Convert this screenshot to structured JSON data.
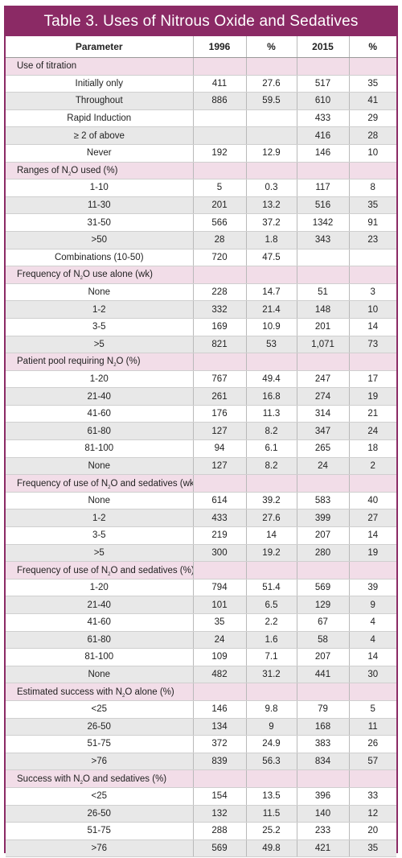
{
  "title": "Table 3. Uses of Nitrous Oxide and Sedatives",
  "headers": [
    "Parameter",
    "1996",
    "%",
    "2015",
    "%"
  ],
  "groups": [
    {
      "label": [
        "Use of titration"
      ],
      "rows": [
        [
          "Initially only",
          "411",
          "27.6",
          "517",
          "35"
        ],
        [
          "Throughout",
          "886",
          "59.5",
          "610",
          "41"
        ],
        [
          "Rapid Induction",
          "",
          "",
          "433",
          "29"
        ],
        [
          "≥ 2 of above",
          "",
          "",
          "416",
          "28"
        ],
        [
          "Never",
          "192",
          "12.9",
          "146",
          "10"
        ]
      ]
    },
    {
      "label": [
        "Ranges of N",
        "2",
        "O used (%)"
      ],
      "rows": [
        [
          "1-10",
          "5",
          "0.3",
          "117",
          "8"
        ],
        [
          "11-30",
          "201",
          "13.2",
          "516",
          "35"
        ],
        [
          "31-50",
          "566",
          "37.2",
          "1342",
          "91"
        ],
        [
          ">50",
          "28",
          "1.8",
          "343",
          "23"
        ],
        [
          "Combinations (10-50)",
          "720",
          "47.5",
          "",
          ""
        ]
      ]
    },
    {
      "label": [
        "Frequency of N",
        "2",
        "O use alone (wk)"
      ],
      "rows": [
        [
          "None",
          "228",
          "14.7",
          "51",
          "3"
        ],
        [
          "1-2",
          "332",
          "21.4",
          "148",
          "10"
        ],
        [
          "3-5",
          "169",
          "10.9",
          "201",
          "14"
        ],
        [
          ">5",
          "821",
          "53",
          "1,071",
          "73"
        ]
      ]
    },
    {
      "label": [
        "Patient pool requiring N",
        "2",
        "O (%)"
      ],
      "rows": [
        [
          "1-20",
          "767",
          "49.4",
          "247",
          "17"
        ],
        [
          "21-40",
          "261",
          "16.8",
          "274",
          "19"
        ],
        [
          "41-60",
          "176",
          "11.3",
          "314",
          "21"
        ],
        [
          "61-80",
          "127",
          "8.2",
          "347",
          "24"
        ],
        [
          "81-100",
          "94",
          "6.1",
          "265",
          "18"
        ],
        [
          "None",
          "127",
          "8.2",
          "24",
          "2"
        ]
      ]
    },
    {
      "label": [
        "Frequency of use of N",
        "2",
        "O and sedatives (wk)"
      ],
      "rows": [
        [
          "None",
          "614",
          "39.2",
          "583",
          "40"
        ],
        [
          "1-2",
          "433",
          "27.6",
          "399",
          "27"
        ],
        [
          "3-5",
          "219",
          "14",
          "207",
          "14"
        ],
        [
          ">5",
          "300",
          "19.2",
          "280",
          "19"
        ]
      ]
    },
    {
      "label": [
        "Frequency of use of N",
        "2",
        "O and sedatives (%)"
      ],
      "rows": [
        [
          "1-20",
          "794",
          "51.4",
          "569",
          "39"
        ],
        [
          "21-40",
          "101",
          "6.5",
          "129",
          "9"
        ],
        [
          "41-60",
          "35",
          "2.2",
          "67",
          "4"
        ],
        [
          "61-80",
          "24",
          "1.6",
          "58",
          "4"
        ],
        [
          "81-100",
          "109",
          "7.1",
          "207",
          "14"
        ],
        [
          "None",
          "482",
          "31.2",
          "441",
          "30"
        ]
      ]
    },
    {
      "label": [
        "Estimated success with N",
        "2",
        "O alone (%)"
      ],
      "rows": [
        [
          "<25",
          "146",
          "9.8",
          "79",
          "5"
        ],
        [
          "26-50",
          "134",
          "9",
          "168",
          "11"
        ],
        [
          "51-75",
          "372",
          "24.9",
          "383",
          "26"
        ],
        [
          ">76",
          "839",
          "56.3",
          "834",
          "57"
        ]
      ]
    },
    {
      "label": [
        "Success with N",
        "2",
        "O and sedatives (%)"
      ],
      "rows": [
        [
          "<25",
          "154",
          "13.5",
          "396",
          "33"
        ],
        [
          "26-50",
          "132",
          "11.5",
          "140",
          "12"
        ],
        [
          "51-75",
          "288",
          "25.2",
          "233",
          "20"
        ],
        [
          ">76",
          "569",
          "49.8",
          "421",
          "35"
        ]
      ]
    }
  ]
}
